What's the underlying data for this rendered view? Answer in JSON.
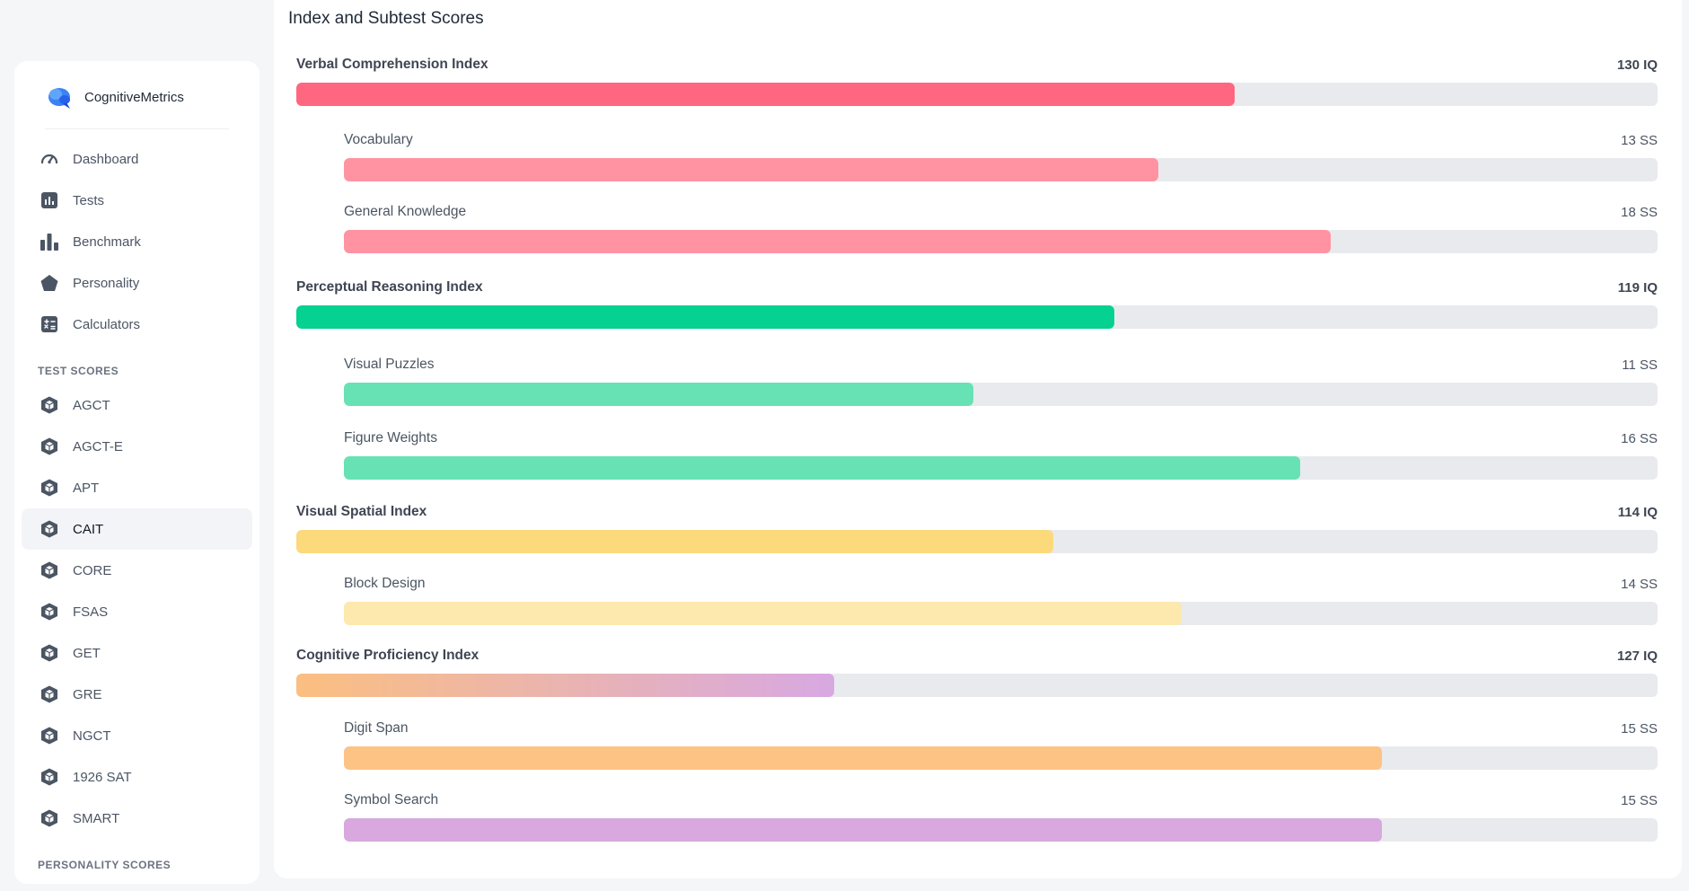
{
  "brand": {
    "name": "CognitiveMetrics"
  },
  "nav": [
    {
      "id": "dashboard",
      "label": "Dashboard",
      "icon": "gauge-icon"
    },
    {
      "id": "tests",
      "label": "Tests",
      "icon": "bar-chart-square-icon"
    },
    {
      "id": "benchmark",
      "label": "Benchmark",
      "icon": "bar-chart-icon"
    },
    {
      "id": "personality",
      "label": "Personality",
      "icon": "pentagon-icon"
    },
    {
      "id": "calculators",
      "label": "Calculators",
      "icon": "calculator-icon"
    }
  ],
  "test_scores": {
    "title": "TEST SCORES",
    "items": [
      {
        "label": "AGCT",
        "active": false
      },
      {
        "label": "AGCT-E",
        "active": false
      },
      {
        "label": "APT",
        "active": false
      },
      {
        "label": "CAIT",
        "active": true
      },
      {
        "label": "CORE",
        "active": false
      },
      {
        "label": "FSAS",
        "active": false
      },
      {
        "label": "GET",
        "active": false
      },
      {
        "label": "GRE",
        "active": false
      },
      {
        "label": "NGCT",
        "active": false
      },
      {
        "label": "1926 SAT",
        "active": false
      },
      {
        "label": "SMART",
        "active": false
      }
    ],
    "item_icon": "cube-icon"
  },
  "personality_scores": {
    "title": "PERSONALITY SCORES"
  },
  "panel": {
    "title": "Index and Subtest Scores",
    "rows": [
      {
        "kind": "index",
        "label": "Verbal Comprehension Index",
        "value": "130 IQ",
        "fill": 0.689,
        "color": "#ff6680"
      },
      {
        "kind": "sub",
        "label": "Vocabulary",
        "value": "13 SS",
        "fill": 0.62,
        "color": "#ff93a2"
      },
      {
        "kind": "sub",
        "label": "General Knowledge",
        "value": "18 SS",
        "fill": 0.751,
        "color": "#ff93a2"
      },
      {
        "kind": "index",
        "label": "Perceptual Reasoning Index",
        "value": "119 IQ",
        "fill": 0.601,
        "color": "#05d190"
      },
      {
        "kind": "sub",
        "label": "Visual Puzzles",
        "value": "11 SS",
        "fill": 0.479,
        "color": "#67e2b4"
      },
      {
        "kind": "sub",
        "label": "Figure Weights",
        "value": "16 SS",
        "fill": 0.728,
        "color": "#67e2b4"
      },
      {
        "kind": "index",
        "label": "Visual Spatial Index",
        "value": "114 IQ",
        "fill": 0.556,
        "color": "#fcd97a"
      },
      {
        "kind": "sub",
        "label": "Block Design",
        "value": "14 SS",
        "fill": 0.638,
        "color": "#fde8ad"
      },
      {
        "kind": "index",
        "label": "Cognitive Proficiency Index",
        "value": "127 IQ",
        "fill": 0.395,
        "color": "#fbbf80",
        "color2": "#d8a8e2"
      },
      {
        "kind": "sub",
        "label": "Digit Span",
        "value": "15 SS",
        "fill": 0.79,
        "color": "#fdc384"
      },
      {
        "kind": "sub",
        "label": "Symbol Search",
        "value": "15 SS",
        "fill": 0.79,
        "color": "#d8a8de"
      }
    ]
  }
}
